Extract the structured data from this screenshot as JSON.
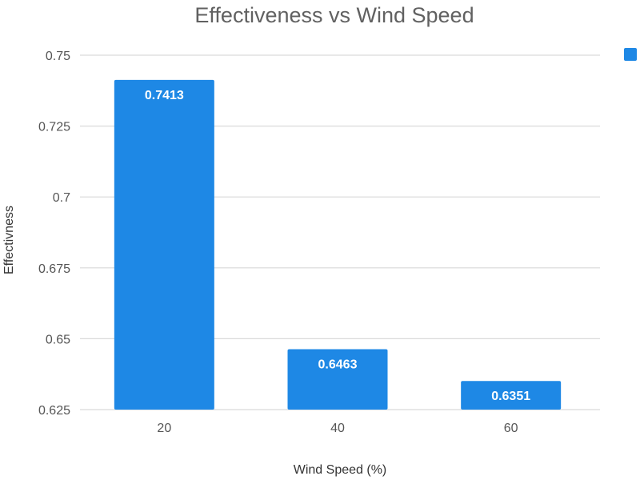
{
  "chart_data": {
    "type": "bar",
    "title": "Effectiveness vs Wind Speed",
    "xlabel": "Wind Speed (%)",
    "ylabel": "Effectivness",
    "categories": [
      "20",
      "40",
      "60"
    ],
    "series": [
      {
        "values": [
          0.7413,
          0.6463,
          0.6351
        ],
        "color": "#1e88e5"
      }
    ],
    "data_labels": [
      "0.7413",
      "0.6463",
      "0.6351"
    ],
    "ylim": [
      0.625,
      0.75
    ],
    "yticks": [
      0.625,
      0.65,
      0.675,
      0.7,
      0.725,
      0.75
    ],
    "ytick_labels": [
      "0.625",
      "0.65",
      "0.675",
      "0.7",
      "0.725",
      "0.75"
    ],
    "grid": true,
    "legend": {
      "position": "top-right",
      "color": "#1e88e5"
    }
  }
}
